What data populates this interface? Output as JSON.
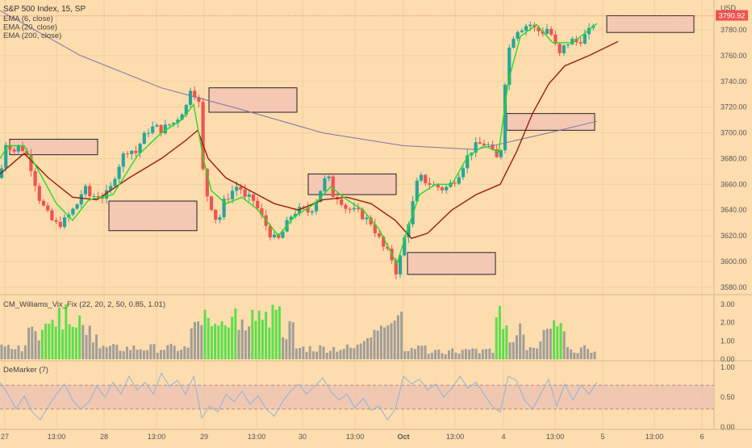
{
  "header": {
    "symbol": "S&P 500 Index, 15, SP",
    "indicators": [
      "EMA (6, close)",
      "EMA (20, close)",
      "EMA (200, close)"
    ]
  },
  "colors": {
    "background": "#fddcae",
    "up_candle": "#26a69a",
    "down_candle": "#ef5350",
    "ema6": "#22dd22",
    "ema20": "#9c1c0c",
    "ema200": "#7c74a8",
    "vix_gray": "#a09e98",
    "vix_green": "#5ae04a",
    "demarker_line": "#8eb4d6",
    "demarker_band": "#e9bfb4",
    "zone_fill": "#f5c8b4",
    "axis_text": "#555555",
    "price_tag": "#ef5350"
  },
  "chart_data": [
    {
      "type": "candlestick",
      "title": "S&P 500 Index, 15, SP",
      "ylabel": "USD",
      "ylim": [
        3575,
        3800
      ],
      "y_ticks": [
        3580,
        3600,
        3620,
        3640,
        3660,
        3680,
        3700,
        3720,
        3740,
        3760,
        3780
      ],
      "last_price": "3790.92",
      "x_ticks": [
        "27",
        "13:00",
        "28",
        "13:00",
        "29",
        "13:00",
        "30",
        "13:00",
        "Oct",
        "13:00",
        "4",
        "13:00",
        "5",
        "13:00",
        "6"
      ],
      "price_path": [
        [
          0,
          3665
        ],
        [
          8,
          3695
        ],
        [
          16,
          3685
        ],
        [
          24,
          3690
        ],
        [
          32,
          3685
        ],
        [
          40,
          3670
        ],
        [
          48,
          3650
        ],
        [
          56,
          3640
        ],
        [
          64,
          3632
        ],
        [
          72,
          3628
        ],
        [
          80,
          3632
        ],
        [
          88,
          3638
        ],
        [
          96,
          3645
        ],
        [
          104,
          3658
        ],
        [
          112,
          3650
        ],
        [
          120,
          3652
        ],
        [
          128,
          3650
        ],
        [
          136,
          3655
        ],
        [
          144,
          3670
        ],
        [
          152,
          3682
        ],
        [
          160,
          3688
        ],
        [
          168,
          3684
        ],
        [
          176,
          3695
        ],
        [
          184,
          3702
        ],
        [
          192,
          3705
        ],
        [
          200,
          3702
        ],
        [
          208,
          3706
        ],
        [
          216,
          3708
        ],
        [
          224,
          3715
        ],
        [
          232,
          3722
        ],
        [
          236,
          3735
        ],
        [
          242,
          3730
        ],
        [
          248,
          3720
        ],
        [
          252,
          3665
        ],
        [
          258,
          3648
        ],
        [
          264,
          3640
        ],
        [
          270,
          3628
        ],
        [
          276,
          3645
        ],
        [
          282,
          3650
        ],
        [
          288,
          3655
        ],
        [
          296,
          3660
        ],
        [
          304,
          3648
        ],
        [
          312,
          3650
        ],
        [
          320,
          3640
        ],
        [
          328,
          3630
        ],
        [
          336,
          3620
        ],
        [
          344,
          3616
        ],
        [
          352,
          3625
        ],
        [
          360,
          3635
        ],
        [
          368,
          3640
        ],
        [
          376,
          3640
        ],
        [
          384,
          3638
        ],
        [
          392,
          3648
        ],
        [
          400,
          3660
        ],
        [
          406,
          3668
        ],
        [
          412,
          3652
        ],
        [
          420,
          3650
        ],
        [
          428,
          3642
        ],
        [
          436,
          3640
        ],
        [
          444,
          3638
        ],
        [
          452,
          3634
        ],
        [
          460,
          3630
        ],
        [
          468,
          3620
        ],
        [
          476,
          3610
        ],
        [
          484,
          3605
        ],
        [
          492,
          3590
        ],
        [
          498,
          3610
        ],
        [
          504,
          3625
        ],
        [
          510,
          3640
        ],
        [
          516,
          3660
        ],
        [
          522,
          3665
        ],
        [
          528,
          3662
        ],
        [
          534,
          3660
        ],
        [
          542,
          3658
        ],
        [
          550,
          3656
        ],
        [
          558,
          3660
        ],
        [
          566,
          3665
        ],
        [
          574,
          3675
        ],
        [
          582,
          3685
        ],
        [
          590,
          3690
        ],
        [
          598,
          3692
        ],
        [
          606,
          3690
        ],
        [
          614,
          3680
        ],
        [
          620,
          3680
        ],
        [
          626,
          3740
        ],
        [
          632,
          3770
        ],
        [
          640,
          3780
        ],
        [
          648,
          3782
        ],
        [
          656,
          3785
        ],
        [
          664,
          3780
        ],
        [
          672,
          3778
        ],
        [
          680,
          3782
        ],
        [
          688,
          3768
        ],
        [
          694,
          3760
        ],
        [
          700,
          3768
        ],
        [
          708,
          3772
        ],
        [
          716,
          3770
        ],
        [
          724,
          3775
        ],
        [
          732,
          3780
        ],
        [
          740,
          3792
        ]
      ],
      "ema200": [
        [
          0,
          3795
        ],
        [
          100,
          3760
        ],
        [
          200,
          3735
        ],
        [
          300,
          3718
        ],
        [
          400,
          3700
        ],
        [
          500,
          3690
        ],
        [
          590,
          3687
        ],
        [
          680,
          3700
        ],
        [
          740,
          3709
        ]
      ],
      "ema20": [
        [
          0,
          3668
        ],
        [
          30,
          3684
        ],
        [
          60,
          3665
        ],
        [
          90,
          3650
        ],
        [
          120,
          3648
        ],
        [
          160,
          3665
        ],
        [
          200,
          3680
        ],
        [
          230,
          3694
        ],
        [
          245,
          3702
        ],
        [
          258,
          3680
        ],
        [
          280,
          3665
        ],
        [
          310,
          3655
        ],
        [
          340,
          3645
        ],
        [
          370,
          3640
        ],
        [
          400,
          3648
        ],
        [
          430,
          3650
        ],
        [
          460,
          3645
        ],
        [
          490,
          3632
        ],
        [
          510,
          3618
        ],
        [
          530,
          3622
        ],
        [
          560,
          3640
        ],
        [
          590,
          3652
        ],
        [
          620,
          3660
        ],
        [
          640,
          3685
        ],
        [
          660,
          3715
        ],
        [
          680,
          3738
        ],
        [
          700,
          3752
        ],
        [
          730,
          3760
        ],
        [
          766,
          3771
        ]
      ],
      "ema6": [
        [
          0,
          3680
        ],
        [
          10,
          3690
        ],
        [
          30,
          3690
        ],
        [
          50,
          3668
        ],
        [
          70,
          3645
        ],
        [
          90,
          3632
        ],
        [
          110,
          3648
        ],
        [
          140,
          3652
        ],
        [
          170,
          3682
        ],
        [
          200,
          3700
        ],
        [
          225,
          3710
        ],
        [
          240,
          3722
        ],
        [
          252,
          3680
        ],
        [
          262,
          3655
        ],
        [
          280,
          3645
        ],
        [
          300,
          3650
        ],
        [
          320,
          3640
        ],
        [
          345,
          3620
        ],
        [
          365,
          3635
        ],
        [
          390,
          3645
        ],
        [
          410,
          3658
        ],
        [
          430,
          3648
        ],
        [
          450,
          3640
        ],
        [
          470,
          3625
        ],
        [
          492,
          3598
        ],
        [
          505,
          3625
        ],
        [
          520,
          3652
        ],
        [
          540,
          3660
        ],
        [
          560,
          3660
        ],
        [
          580,
          3682
        ],
        [
          600,
          3690
        ],
        [
          618,
          3685
        ],
        [
          630,
          3740
        ],
        [
          645,
          3775
        ],
        [
          665,
          3784
        ],
        [
          685,
          3770
        ],
        [
          710,
          3770
        ],
        [
          740,
          3785
        ]
      ],
      "zones": [
        {
          "x0": 12,
          "x1": 121,
          "y_top": 3695,
          "y_bot": 3683
        },
        {
          "x0": 135,
          "x1": 244,
          "y_top": 3647,
          "y_bot": 3624
        },
        {
          "x0": 259,
          "x1": 368,
          "y_top": 3735,
          "y_bot": 3716
        },
        {
          "x0": 382,
          "x1": 491,
          "y_top": 3668,
          "y_bot": 3652
        },
        {
          "x0": 505,
          "x1": 614,
          "y_top": 3607,
          "y_bot": 3590
        },
        {
          "x0": 628,
          "x1": 737,
          "y_top": 3715,
          "y_bot": 3702
        },
        {
          "x0": 752,
          "x1": 860,
          "y_top": 3791,
          "y_bot": 3778
        }
      ]
    },
    {
      "type": "bar",
      "title": "CM_Williams_Vix_Fix (22, 20, 2, 50, 0.85, 1.01)",
      "ylim": [
        0,
        3.2
      ],
      "y_ticks": [
        "0.00",
        "1.00",
        "2.00",
        "3.00"
      ],
      "green_ranges": [
        [
          52,
          100
        ],
        [
          253,
          292
        ],
        [
          312,
          347
        ],
        [
          612,
          630
        ],
        [
          686,
          698
        ]
      ]
    },
    {
      "type": "line",
      "title": "DeMarker (7)",
      "ylim": [
        0,
        1.05
      ],
      "y_ticks": [
        "0.00",
        "0.50",
        "1.00"
      ],
      "band": [
        0.3,
        0.7
      ],
      "x": [
        0,
        10,
        20,
        30,
        40,
        50,
        60,
        70,
        80,
        90,
        100,
        110,
        120,
        130,
        140,
        150,
        160,
        170,
        180,
        190,
        200,
        210,
        220,
        230,
        240,
        250,
        260,
        270,
        280,
        290,
        300,
        310,
        320,
        330,
        340,
        350,
        360,
        370,
        380,
        390,
        400,
        410,
        420,
        430,
        440,
        450,
        460,
        470,
        480,
        490,
        500,
        510,
        520,
        530,
        540,
        550,
        560,
        570,
        580,
        590,
        600,
        610,
        620,
        630,
        640,
        650,
        660,
        670,
        680,
        690,
        700,
        710,
        720,
        730,
        740
      ],
      "values": [
        0.75,
        0.55,
        0.3,
        0.52,
        0.25,
        0.12,
        0.35,
        0.55,
        0.72,
        0.45,
        0.3,
        0.42,
        0.68,
        0.5,
        0.75,
        0.55,
        0.85,
        0.62,
        0.75,
        0.55,
        0.9,
        0.68,
        0.78,
        0.55,
        0.85,
        0.15,
        0.35,
        0.25,
        0.55,
        0.42,
        0.6,
        0.38,
        0.52,
        0.3,
        0.18,
        0.42,
        0.6,
        0.72,
        0.55,
        0.68,
        0.82,
        0.6,
        0.45,
        0.55,
        0.32,
        0.48,
        0.28,
        0.35,
        0.12,
        0.3,
        0.85,
        0.72,
        0.8,
        0.62,
        0.72,
        0.5,
        0.65,
        0.85,
        0.65,
        0.75,
        0.55,
        0.35,
        0.25,
        0.85,
        0.78,
        0.45,
        0.3,
        0.55,
        0.8,
        0.35,
        0.72,
        0.45,
        0.7,
        0.55,
        0.75
      ]
    }
  ]
}
